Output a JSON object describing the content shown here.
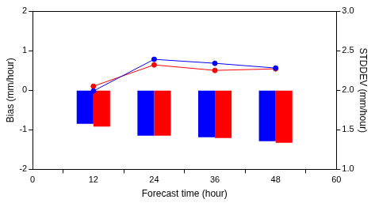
{
  "chart_data": {
    "type": "bar",
    "x_label": "Forecast time (hour)",
    "y_label": "Bias (mm/hour)",
    "y2_label": "STDDEV (mm/hour)",
    "x": [
      12,
      24,
      36,
      48
    ],
    "xlim": [
      0,
      60
    ],
    "xticks": [
      0,
      12,
      24,
      36,
      48,
      60
    ],
    "ylim": [
      -2,
      2
    ],
    "yticks": [
      -2,
      -1,
      0,
      1,
      2
    ],
    "y2lim": [
      1.0,
      3.0
    ],
    "y2ticks": [
      {
        "value": 1.0,
        "label": "1.0"
      },
      1.5,
      {
        "value": 2.0,
        "label": "2.0"
      },
      2.5,
      {
        "value": 3.0,
        "label": "3.0"
      }
    ],
    "grid": false,
    "series": [
      {
        "type": "bar",
        "color": "#0000ff",
        "values": [
          -0.85,
          -1.15,
          -1.19,
          -1.29
        ]
      },
      {
        "type": "bar",
        "color": "#ff0000",
        "values": [
          -0.92,
          -1.15,
          -1.21,
          -1.33
        ]
      },
      {
        "type": "line",
        "axis": "y2",
        "color": "#0000ff",
        "marker": "circle",
        "line_style": "solid",
        "values": [
          1.99,
          2.39,
          2.34,
          2.28
        ]
      },
      {
        "type": "line",
        "axis": "y2",
        "color": "#ff0000",
        "marker": "circle",
        "line_style": "solid",
        "values": [
          2.05,
          2.32,
          2.25,
          2.27
        ]
      }
    ]
  }
}
